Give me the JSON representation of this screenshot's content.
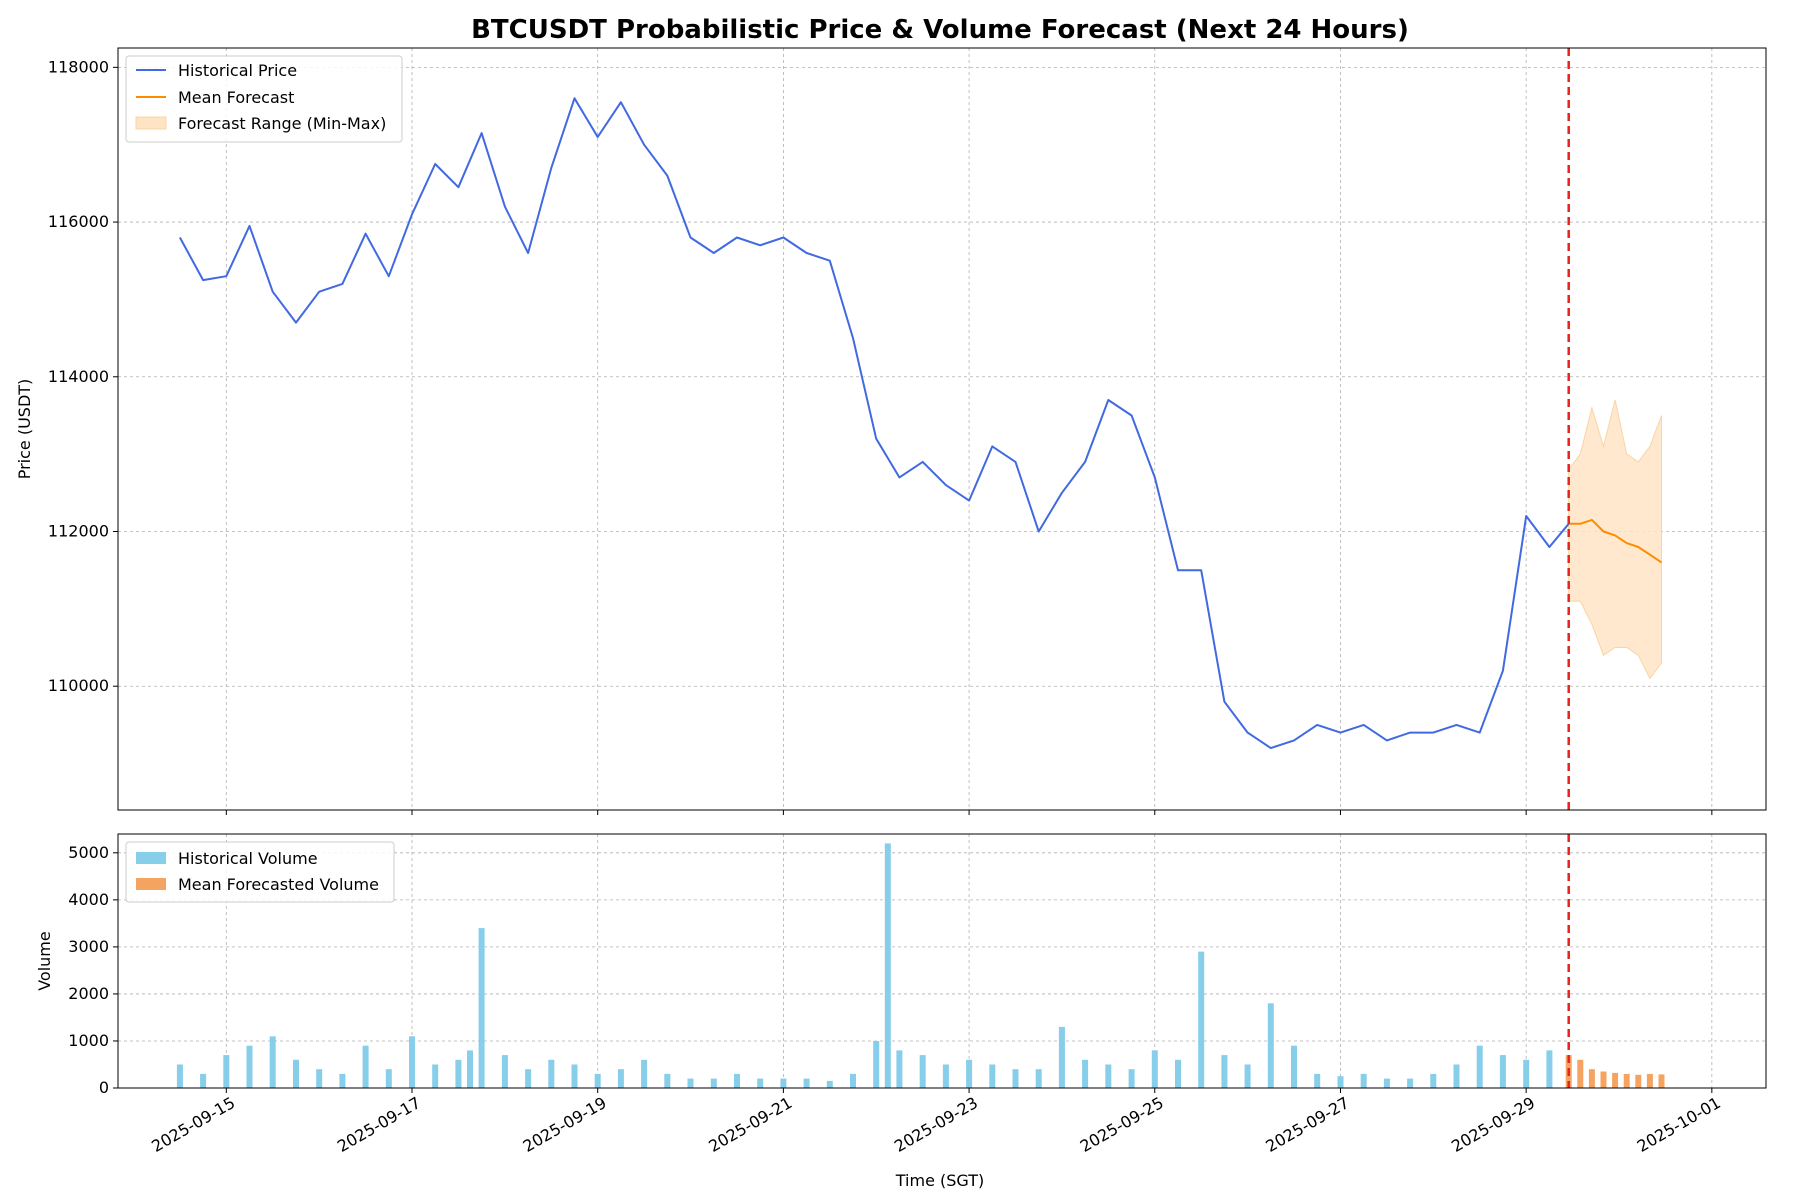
{
  "chart_data": [
    {
      "type": "line",
      "title": "BTCUSDT Probabilistic Price & Volume Forecast (Next 24 Hours)",
      "ylabel": "Price (USDT)",
      "xlabel": "",
      "ylim": [
        108400,
        118250
      ],
      "xlim": [
        "2025-09-13T20:00",
        "2025-10-01T14:00"
      ],
      "yticks": [
        "110000",
        "112000",
        "114000",
        "116000",
        "118000"
      ],
      "grid": true,
      "legend_position": "top-left",
      "forecast_start": "2025-09-29T11:00",
      "series": [
        {
          "name": "Historical Price",
          "color": "#4169e1",
          "x": [
            "2025-09-14T12:00",
            "2025-09-14T18:00",
            "2025-09-15T00:00",
            "2025-09-15T06:00",
            "2025-09-15T12:00",
            "2025-09-15T18:00",
            "2025-09-16T00:00",
            "2025-09-16T06:00",
            "2025-09-16T12:00",
            "2025-09-16T18:00",
            "2025-09-17T00:00",
            "2025-09-17T06:00",
            "2025-09-17T12:00",
            "2025-09-17T18:00",
            "2025-09-18T00:00",
            "2025-09-18T06:00",
            "2025-09-18T12:00",
            "2025-09-18T18:00",
            "2025-09-19T00:00",
            "2025-09-19T06:00",
            "2025-09-19T12:00",
            "2025-09-19T18:00",
            "2025-09-20T00:00",
            "2025-09-20T06:00",
            "2025-09-20T12:00",
            "2025-09-20T18:00",
            "2025-09-21T00:00",
            "2025-09-21T06:00",
            "2025-09-21T12:00",
            "2025-09-21T18:00",
            "2025-09-22T00:00",
            "2025-09-22T06:00",
            "2025-09-22T12:00",
            "2025-09-22T18:00",
            "2025-09-23T00:00",
            "2025-09-23T06:00",
            "2025-09-23T12:00",
            "2025-09-23T18:00",
            "2025-09-24T00:00",
            "2025-09-24T06:00",
            "2025-09-24T12:00",
            "2025-09-24T18:00",
            "2025-09-25T00:00",
            "2025-09-25T06:00",
            "2025-09-25T12:00",
            "2025-09-25T18:00",
            "2025-09-26T00:00",
            "2025-09-26T06:00",
            "2025-09-26T12:00",
            "2025-09-26T18:00",
            "2025-09-27T00:00",
            "2025-09-27T06:00",
            "2025-09-27T12:00",
            "2025-09-27T18:00",
            "2025-09-28T00:00",
            "2025-09-28T06:00",
            "2025-09-28T12:00",
            "2025-09-28T18:00",
            "2025-09-29T00:00",
            "2025-09-29T06:00",
            "2025-09-29T11:00"
          ],
          "values": [
            115800,
            115250,
            115300,
            115950,
            115100,
            114700,
            115100,
            115200,
            115850,
            115300,
            116100,
            116750,
            116450,
            117150,
            116200,
            115600,
            116700,
            117600,
            117100,
            117550,
            117000,
            116600,
            115800,
            115600,
            115800,
            115700,
            115800,
            115600,
            115500,
            114500,
            113200,
            112700,
            112900,
            112600,
            112400,
            113100,
            112900,
            112000,
            112500,
            112900,
            113700,
            113500,
            112700,
            111500,
            111500,
            109800,
            109400,
            109200,
            109300,
            109500,
            109400,
            109500,
            109300,
            109400,
            109400,
            109500,
            109400,
            110200,
            112200,
            111800,
            112100
          ]
        },
        {
          "name": "Mean Forecast",
          "color": "#ff8c00",
          "x": [
            "2025-09-29T11:00",
            "2025-09-29T14:00",
            "2025-09-29T17:00",
            "2025-09-29T20:00",
            "2025-09-29T23:00",
            "2025-09-30T02:00",
            "2025-09-30T05:00",
            "2025-09-30T08:00",
            "2025-09-30T11:00"
          ],
          "values": [
            112100,
            112100,
            112150,
            112000,
            111950,
            111850,
            111800,
            111700,
            111600
          ]
        },
        {
          "name": "Forecast Range (Min-Max)",
          "color": "#ffe4c4",
          "x": [
            "2025-09-29T11:00",
            "2025-09-29T14:00",
            "2025-09-29T17:00",
            "2025-09-29T20:00",
            "2025-09-29T23:00",
            "2025-09-30T02:00",
            "2025-09-30T05:00",
            "2025-09-30T08:00",
            "2025-09-30T11:00"
          ],
          "upper": [
            112800,
            113000,
            113600,
            113100,
            113700,
            113000,
            112900,
            113100,
            113500
          ],
          "lower": [
            111100,
            111100,
            110800,
            110400,
            110500,
            110500,
            110400,
            110100,
            110300
          ]
        }
      ]
    },
    {
      "type": "bar",
      "title": "",
      "xlabel": "Time (SGT)",
      "ylabel": "Volume",
      "ylim": [
        0,
        5400
      ],
      "yticks": [
        "0",
        "1000",
        "2000",
        "3000",
        "4000",
        "5000"
      ],
      "xticks": [
        "2025-09-15",
        "2025-09-17",
        "2025-09-19",
        "2025-09-21",
        "2025-09-23",
        "2025-09-25",
        "2025-09-27",
        "2025-09-29",
        "2025-10-01"
      ],
      "grid": true,
      "legend_position": "top-left",
      "series": [
        {
          "name": "Historical Volume",
          "color": "#87ceeb",
          "x": [
            "2025-09-14T12:00",
            "2025-09-14T18:00",
            "2025-09-15T00:00",
            "2025-09-15T06:00",
            "2025-09-15T12:00",
            "2025-09-15T18:00",
            "2025-09-16T00:00",
            "2025-09-16T06:00",
            "2025-09-16T12:00",
            "2025-09-16T18:00",
            "2025-09-17T00:00",
            "2025-09-17T06:00",
            "2025-09-17T12:00",
            "2025-09-17T15:00",
            "2025-09-17T18:00",
            "2025-09-18T00:00",
            "2025-09-18T06:00",
            "2025-09-18T12:00",
            "2025-09-18T18:00",
            "2025-09-19T00:00",
            "2025-09-19T06:00",
            "2025-09-19T12:00",
            "2025-09-19T18:00",
            "2025-09-20T00:00",
            "2025-09-20T06:00",
            "2025-09-20T12:00",
            "2025-09-20T18:00",
            "2025-09-21T00:00",
            "2025-09-21T06:00",
            "2025-09-21T12:00",
            "2025-09-21T18:00",
            "2025-09-22T00:00",
            "2025-09-22T03:00",
            "2025-09-22T06:00",
            "2025-09-22T12:00",
            "2025-09-22T18:00",
            "2025-09-23T00:00",
            "2025-09-23T06:00",
            "2025-09-23T12:00",
            "2025-09-23T18:00",
            "2025-09-24T00:00",
            "2025-09-24T06:00",
            "2025-09-24T12:00",
            "2025-09-24T18:00",
            "2025-09-25T00:00",
            "2025-09-25T06:00",
            "2025-09-25T12:00",
            "2025-09-25T18:00",
            "2025-09-26T00:00",
            "2025-09-26T06:00",
            "2025-09-26T12:00",
            "2025-09-26T18:00",
            "2025-09-27T00:00",
            "2025-09-27T06:00",
            "2025-09-27T12:00",
            "2025-09-27T18:00",
            "2025-09-28T00:00",
            "2025-09-28T06:00",
            "2025-09-28T12:00",
            "2025-09-28T18:00",
            "2025-09-29T00:00",
            "2025-09-29T06:00"
          ],
          "values": [
            500,
            300,
            700,
            900,
            1100,
            600,
            400,
            300,
            900,
            400,
            1100,
            500,
            600,
            800,
            3400,
            700,
            400,
            600,
            500,
            300,
            400,
            600,
            300,
            200,
            200,
            300,
            200,
            200,
            200,
            150,
            300,
            1000,
            5200,
            800,
            700,
            500,
            600,
            500,
            400,
            400,
            1300,
            600,
            500,
            400,
            800,
            600,
            2900,
            700,
            500,
            1800,
            900,
            300,
            250,
            300,
            200,
            200,
            300,
            500,
            900,
            700,
            600,
            800
          ]
        },
        {
          "name": "Mean Forecasted Volume",
          "color": "#f4a460",
          "x": [
            "2025-09-29T11:00",
            "2025-09-29T14:00",
            "2025-09-29T17:00",
            "2025-09-29T20:00",
            "2025-09-29T23:00",
            "2025-09-30T02:00",
            "2025-09-30T05:00",
            "2025-09-30T08:00",
            "2025-09-30T11:00"
          ],
          "values": [
            700,
            600,
            400,
            350,
            320,
            300,
            280,
            300,
            290
          ]
        }
      ]
    }
  ]
}
